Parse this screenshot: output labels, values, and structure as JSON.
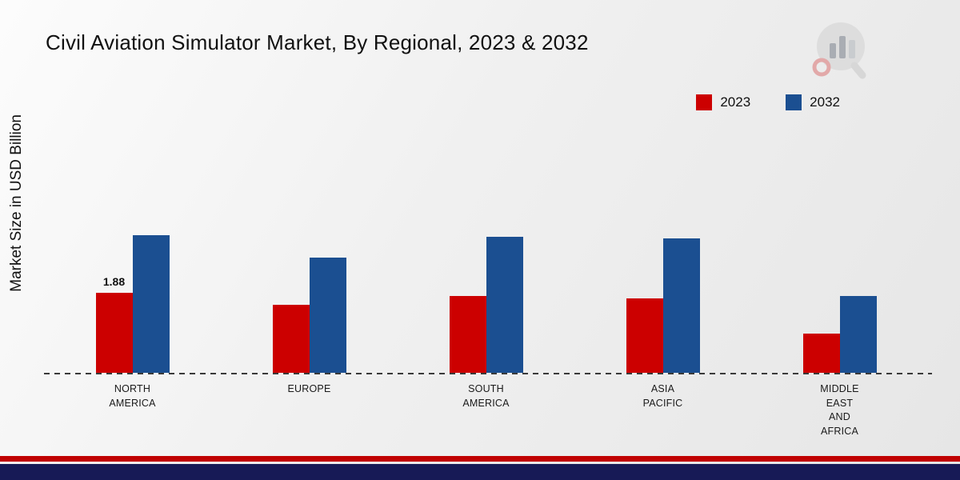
{
  "title": "Civil Aviation Simulator Market, By Regional, 2023 & 2032",
  "y_axis_label": "Market Size in USD Billion",
  "colors": {
    "series_2023": "#cc0000",
    "series_2032": "#1b4f91",
    "footer_red": "#c00000",
    "footer_navy": "#171a56",
    "baseline": "#3a3a3a"
  },
  "chart_data": {
    "type": "bar",
    "title": "Civil Aviation Simulator Market, By Regional, 2023 & 2032",
    "ylabel": "Market Size in USD Billion",
    "categories": [
      "NORTH\nAMERICA",
      "EUROPE",
      "SOUTH\nAMERICA",
      "ASIA\nPACIFIC",
      "MIDDLE\nEAST\nAND\nAFRICA"
    ],
    "series": [
      {
        "name": "2023",
        "color": "#cc0000",
        "values": [
          1.88,
          1.6,
          1.8,
          1.75,
          0.92
        ]
      },
      {
        "name": "2032",
        "color": "#1b4f91",
        "values": [
          3.23,
          2.7,
          3.2,
          3.15,
          1.8
        ]
      }
    ],
    "annotations": [
      {
        "series_index": 0,
        "category_index": 0,
        "text": "1.88"
      }
    ],
    "ylim": [
      0,
      4
    ],
    "grid": false,
    "legend_position": "top-right",
    "baseline_style": "dashed"
  }
}
